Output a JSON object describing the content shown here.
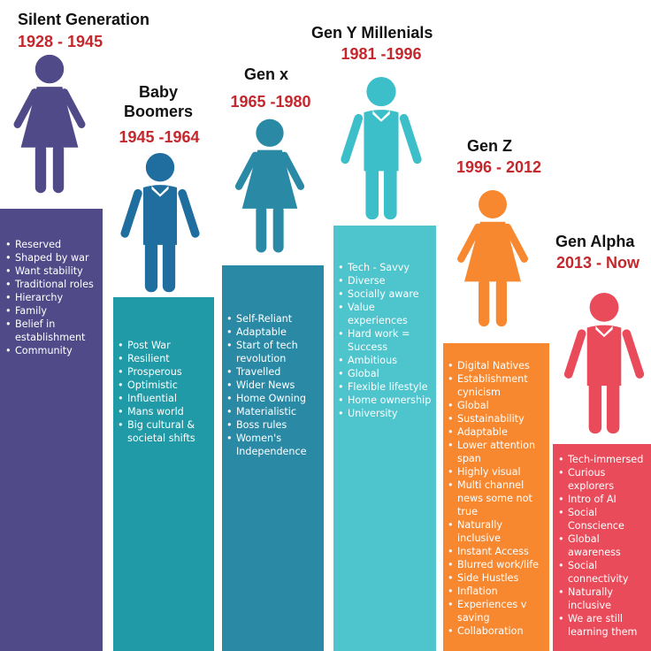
{
  "colors": {
    "year_red": "#c4282d",
    "silent": "#514a88",
    "boomers": "#1f6e9f",
    "genx": "#2a8aa6",
    "geny_fig": "#3dbfc9",
    "geny_bar": "#4ec4cd",
    "genz": "#f7882f",
    "alpha": "#ea4b5a"
  },
  "generations": [
    {
      "name": "Silent Generation",
      "years": "1928 - 1945",
      "traits": [
        "Reserved",
        "Shaped by war",
        "Want stability",
        "Traditional roles",
        "Hierarchy",
        "Family",
        "Belief in establishment",
        "Community"
      ]
    },
    {
      "name": "Baby\nBoomers",
      "years": "1945 -1964",
      "traits": [
        "Post War",
        "Resilient",
        "Prosperous",
        "Optimistic",
        "Influential",
        "Mans world",
        "Big cultural & societal shifts"
      ]
    },
    {
      "name": "Gen x",
      "years": "1965 -1980",
      "traits": [
        "Self-Reliant",
        "Adaptable",
        "Start of tech revolution",
        "Travelled",
        "Wider News",
        "Home Owning",
        "Materialistic",
        "Boss rules",
        "Women's Independence"
      ]
    },
    {
      "name": "Gen Y Millenials",
      "years": "1981 -1996",
      "traits": [
        "Tech - Savvy",
        "Diverse",
        "Socially aware",
        "Value experiences",
        "Hard work = Success",
        "Ambitious",
        "Global",
        "Flexible lifestyle",
        "Home ownership",
        "University"
      ]
    },
    {
      "name": "Gen Z",
      "years": "1996 - 2012",
      "traits": [
        "Digital Natives",
        "Establishment cynicism",
        "Global",
        "Sustainability",
        "Adaptable",
        "Lower attention span",
        "Highly visual",
        "Multi channel news some not true",
        "Naturally  inclusive",
        "Instant Access",
        "Blurred work/life",
        "Side Hustles",
        "Inflation",
        "Experiences v saving",
        "Collaboration"
      ]
    },
    {
      "name": "Gen Alpha",
      "years": "2013 - Now",
      "traits": [
        "Tech-immersed",
        "Curious explorers",
        "Intro of AI",
        "Social Conscience",
        "Global awareness",
        "Social connectivity",
        "Naturally inclusive",
        "We are still learning them"
      ]
    }
  ]
}
